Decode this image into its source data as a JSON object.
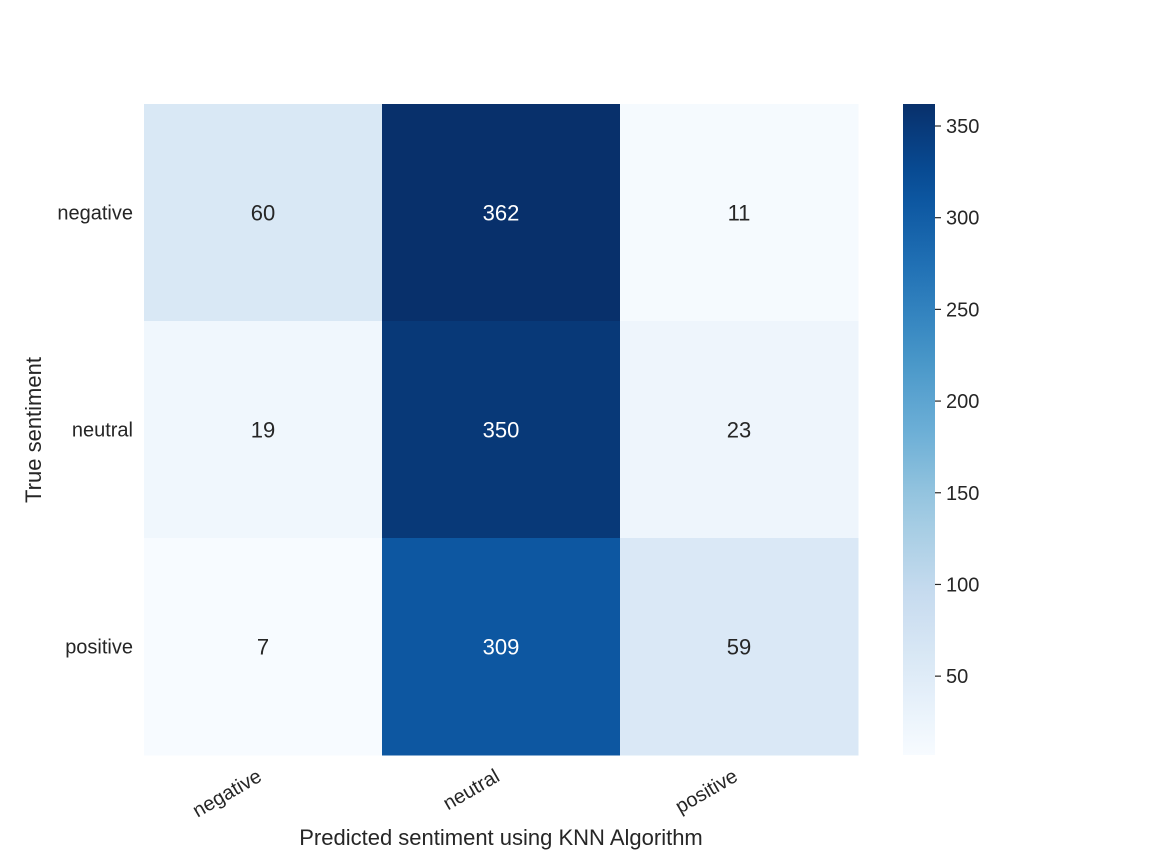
{
  "chart_data": {
    "type": "heatmap",
    "title": "",
    "xlabel": "Predicted sentiment using KNN Algorithm",
    "ylabel": "True sentiment",
    "x_categories": [
      "negative",
      "neutral",
      "positive"
    ],
    "y_categories": [
      "negative",
      "neutral",
      "positive"
    ],
    "values": [
      [
        60,
        362,
        11
      ],
      [
        19,
        350,
        23
      ],
      [
        7,
        309,
        59
      ]
    ],
    "colormap": "Blues",
    "colorbar": {
      "min": 7,
      "max": 362,
      "ticks": [
        50,
        100,
        150,
        200,
        250,
        300,
        350
      ]
    },
    "grid": false
  }
}
